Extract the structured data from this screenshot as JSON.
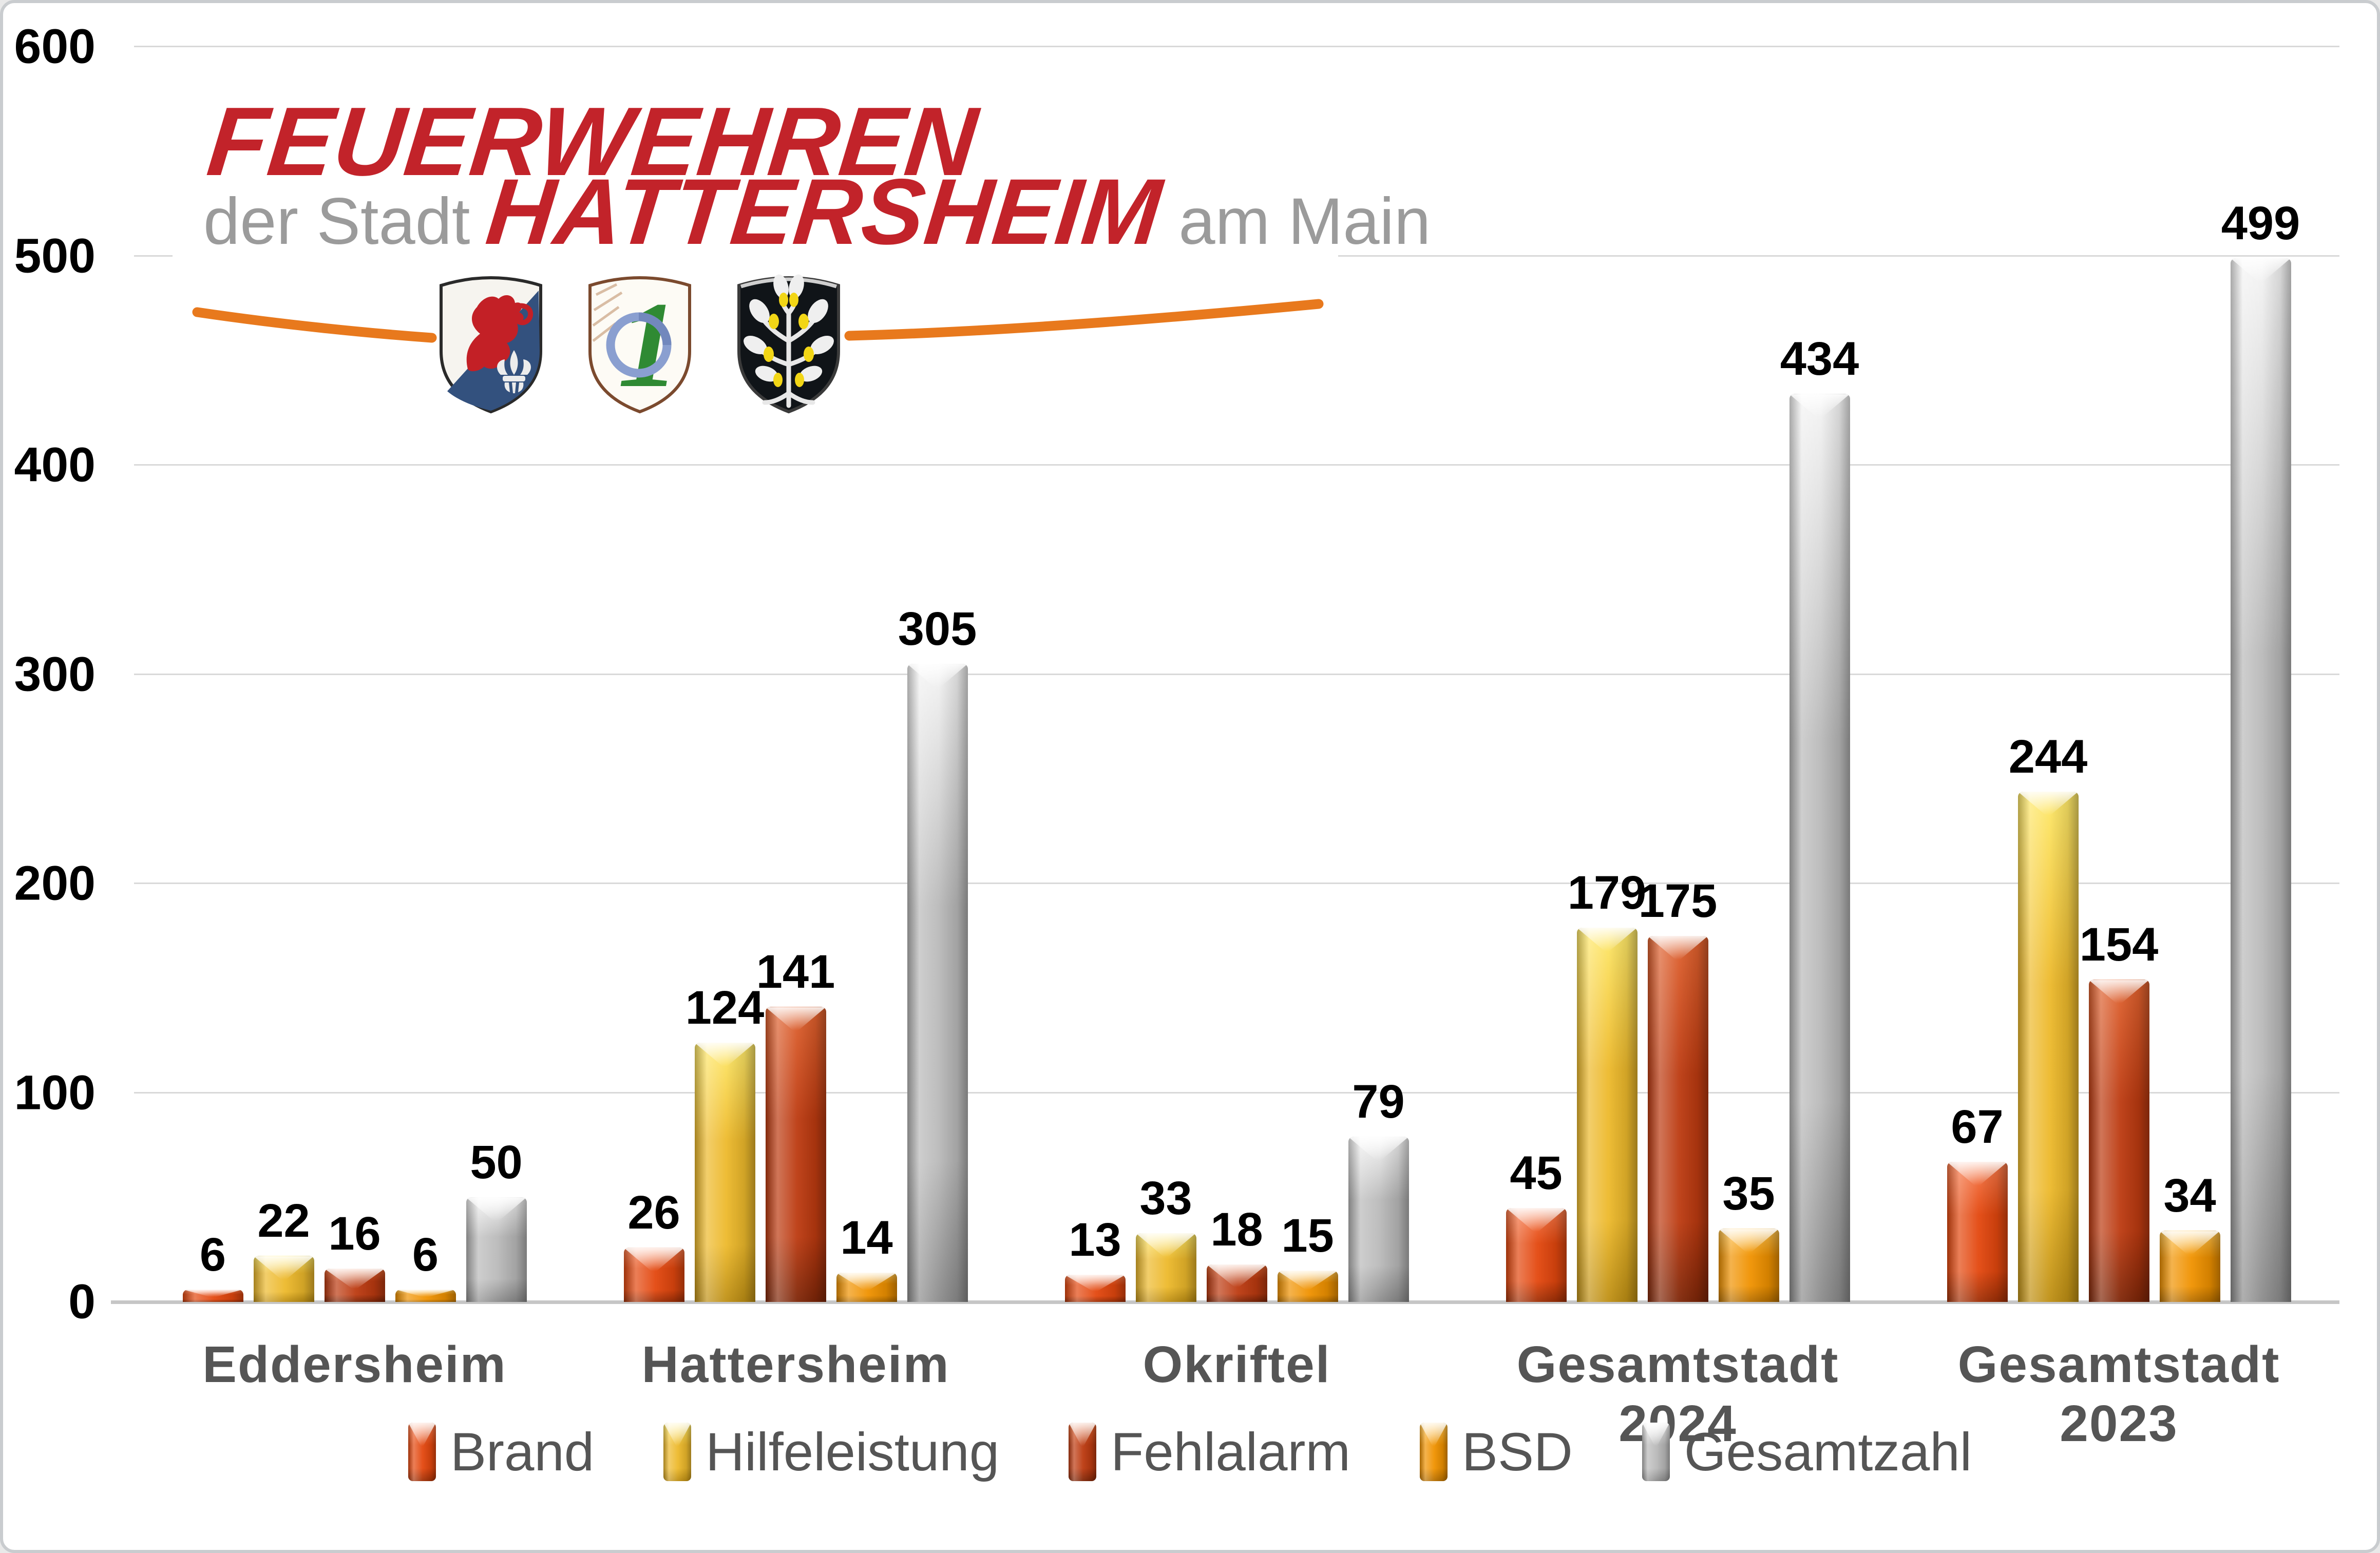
{
  "frame": {
    "background": "#ffffff",
    "border_color": "#c9cccf"
  },
  "logo": {
    "line1": "FEUERWEHREN",
    "line2_prefix": "der Stadt",
    "line2_main": "HATTERSHEIM",
    "line2_suffix": "am Main",
    "colors": {
      "red": "#c2232a",
      "gray": "#9b9b9b",
      "swoosh": "#e8791d"
    }
  },
  "chart_data": {
    "type": "bar",
    "title": "",
    "xlabel": "",
    "ylabel": "",
    "categories": [
      "Eddersheim",
      "Hattersheim",
      "Okriftel",
      "Gesamtstadt 2024",
      "Gesamtstadt 2023"
    ],
    "series": [
      {
        "name": "Brand",
        "values": [
          6,
          26,
          13,
          45,
          67
        ],
        "color": "#e3470e",
        "color_light": "#f87a4b",
        "color_dark": "#9f3007"
      },
      {
        "name": "Hilfeleistung",
        "values": [
          22,
          124,
          33,
          179,
          244
        ],
        "color": "#edb92b",
        "color_light": "#ffe96a",
        "color_dark": "#be8f14"
      },
      {
        "name": "Fehlalarm",
        "values": [
          16,
          141,
          18,
          175,
          154
        ],
        "color": "#bc3a10",
        "color_light": "#e0622f",
        "color_dark": "#7e2608"
      },
      {
        "name": "BSD",
        "values": [
          6,
          14,
          15,
          35,
          34
        ],
        "color": "#f09200",
        "color_light": "#ffc44f",
        "color_dark": "#b56e00"
      },
      {
        "name": "Gesamtzahl",
        "values": [
          50,
          305,
          79,
          434,
          499
        ],
        "color": "#b9b9b9",
        "color_light": "#f4f4f4",
        "color_dark": "#8c8c8c"
      }
    ],
    "ylim": [
      0,
      600
    ],
    "yticks": [
      0,
      100,
      200,
      300,
      400,
      500,
      600
    ],
    "grid": true,
    "legend_position": "bottom",
    "value_labels": true,
    "styles": {
      "gridline": "#d9d9d9",
      "axis_line": "#c6c6c6",
      "tick_color": "#000000",
      "category_color": "#555555",
      "legend_color": "#555555",
      "value_label_color": "#000000"
    }
  }
}
